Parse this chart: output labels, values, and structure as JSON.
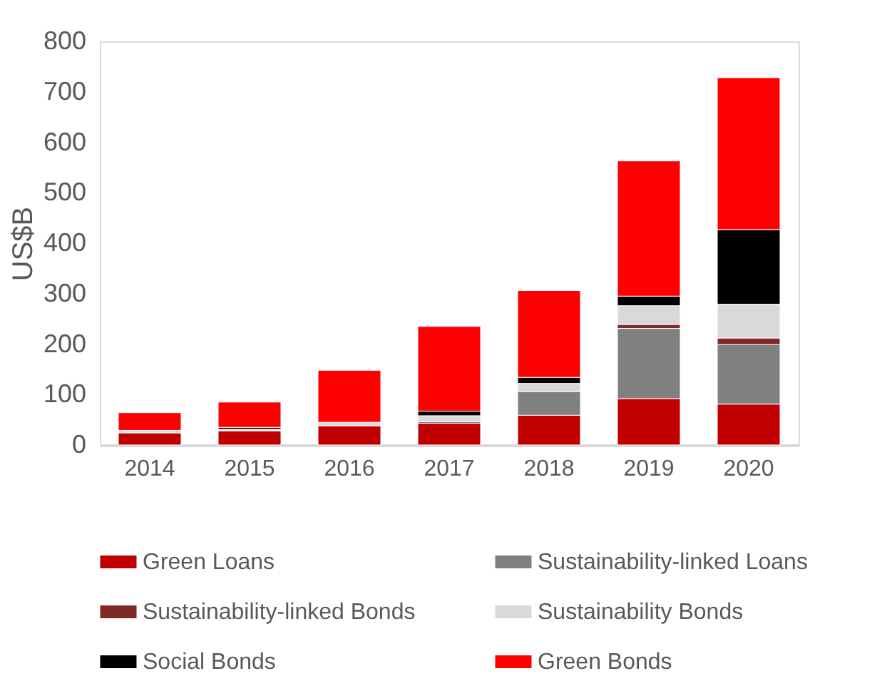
{
  "chart_data": {
    "type": "bar",
    "stacked": true,
    "ylabel": "US$B",
    "categories": [
      "2014",
      "2015",
      "2016",
      "2017",
      "2018",
      "2019",
      "2020"
    ],
    "series": [
      {
        "name": "Green Loans",
        "color": "#c00000",
        "values": [
          24,
          28,
          38,
          43,
          59,
          92,
          81
        ]
      },
      {
        "name": "Sustainability-linked Loans",
        "color": "#808080",
        "values": [
          null,
          null,
          null,
          3,
          47,
          139,
          118
        ]
      },
      {
        "name": "Sustainability-linked Bonds",
        "color": "#7f2929",
        "values": [
          null,
          null,
          null,
          null,
          null,
          8,
          13
        ]
      },
      {
        "name": "Sustainability Bonds",
        "color": "#d9d9d9",
        "values": [
          5,
          3,
          7,
          12,
          16,
          37,
          67
        ]
      },
      {
        "name": "Social Bonds",
        "color": "#000000",
        "values": [
          null,
          4,
          null,
          9,
          12,
          19,
          148
        ]
      },
      {
        "name": "Green Bonds",
        "color": "#ff0000",
        "values": [
          35,
          50,
          103,
          168,
          172,
          268,
          301
        ]
      }
    ],
    "ylim": [
      0,
      800
    ],
    "yticks": [
      0,
      100,
      200,
      300,
      400,
      500,
      600,
      700,
      800
    ],
    "grid": false,
    "legend": "bottom"
  }
}
